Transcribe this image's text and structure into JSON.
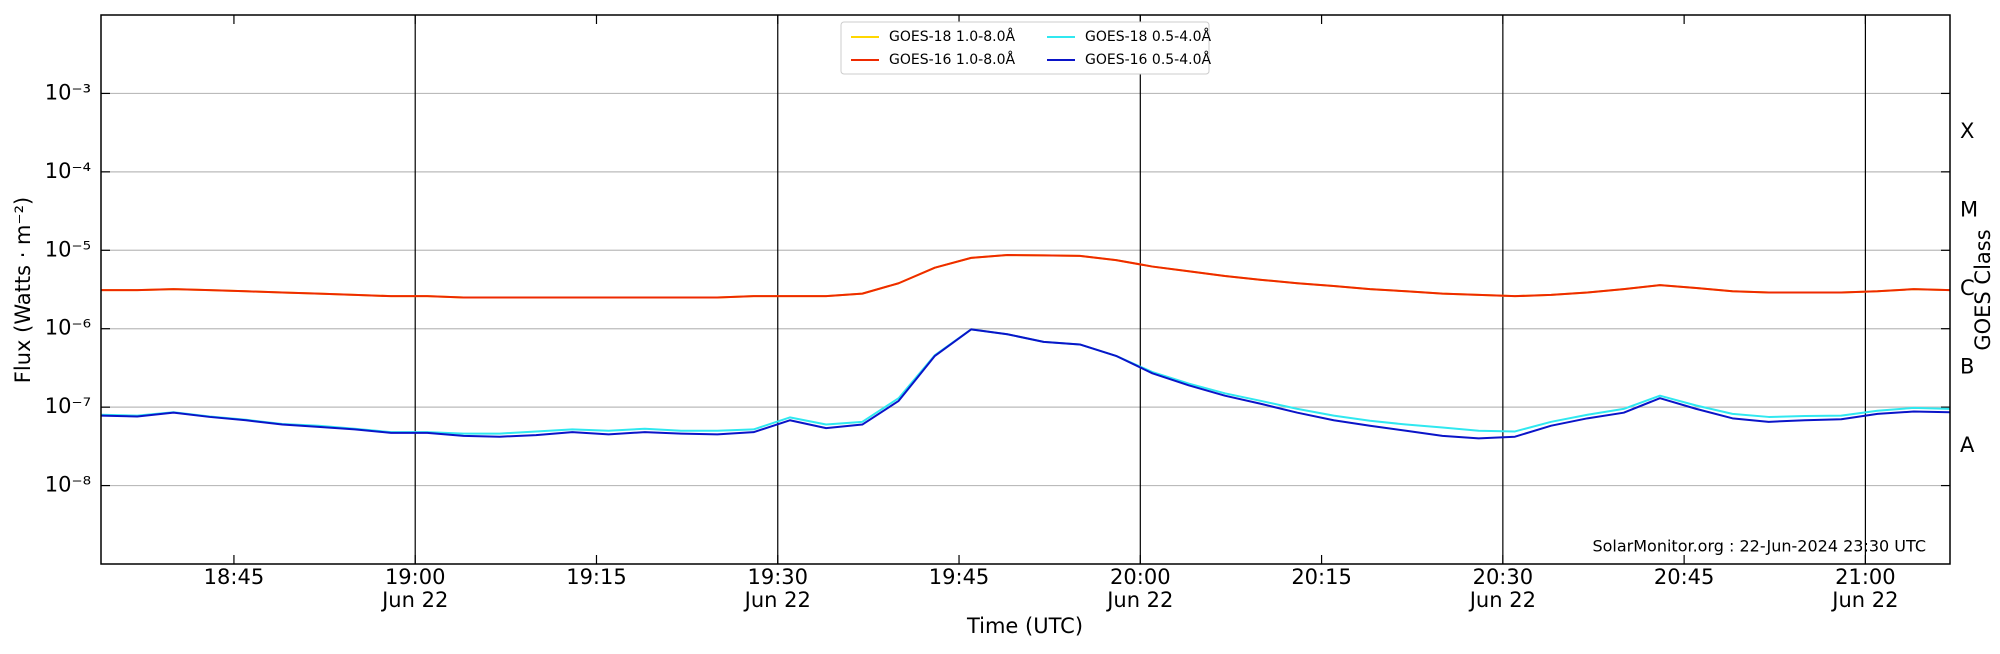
{
  "chart_data": {
    "type": "line",
    "xlabel": "Time (UTC)",
    "ylabel": "Flux (Watts · m⁻²)",
    "y2label": "GOES Class",
    "annotation": "SolarMonitor.org : 22-Jun-2024 23:30 UTC",
    "log_y": true,
    "grid": true,
    "legend": "upper center",
    "legend_columns": 2,
    "xlim": [
      "18:34",
      "21:07"
    ],
    "xticks": [
      "18:45",
      {
        "value": "19:00",
        "label": [
          "19:00",
          "Jun 22"
        ]
      },
      "19:15",
      {
        "value": "19:30",
        "label": [
          "19:30",
          "Jun 22"
        ]
      },
      "19:45",
      {
        "value": "20:00",
        "label": [
          "20:00",
          "Jun 22"
        ]
      },
      "20:15",
      {
        "value": "20:30",
        "label": [
          "20:30",
          "Jun 22"
        ]
      },
      "20:45",
      {
        "value": "21:00",
        "label": [
          "21:00",
          "Jun 22"
        ]
      }
    ],
    "vlines": [
      "19:00",
      "19:30",
      "20:00",
      "20:30",
      "21:00"
    ],
    "ylim": [
      1e-09,
      0.01
    ],
    "yticks": [
      {
        "value": 0.001,
        "label": "10⁻³"
      },
      {
        "value": 0.0001,
        "label": "10⁻⁴"
      },
      {
        "value": 1e-05,
        "label": "10⁻⁵"
      },
      {
        "value": 1e-06,
        "label": "10⁻⁶"
      },
      {
        "value": 1e-07,
        "label": "10⁻⁷"
      },
      {
        "value": 1e-08,
        "label": "10⁻⁸"
      }
    ],
    "y2lim": [
      1e-09,
      0.01
    ],
    "y2ticks": [
      {
        "value": 0.00032,
        "label": "X"
      },
      {
        "value": 3.2e-05,
        "label": "M"
      },
      {
        "value": 3.2e-06,
        "label": "C"
      },
      {
        "value": 3.2e-07,
        "label": "B"
      },
      {
        "value": 3.2e-08,
        "label": "A"
      }
    ],
    "x": [
      "18:34",
      "18:37",
      "18:40",
      "18:43",
      "18:46",
      "18:49",
      "18:52",
      "18:55",
      "18:58",
      "19:01",
      "19:04",
      "19:07",
      "19:10",
      "19:13",
      "19:16",
      "19:19",
      "19:22",
      "19:25",
      "19:28",
      "19:31",
      "19:34",
      "19:37",
      "19:40",
      "19:43",
      "19:46",
      "19:49",
      "19:52",
      "19:55",
      "19:58",
      "20:01",
      "20:04",
      "20:07",
      "20:10",
      "20:13",
      "20:16",
      "20:19",
      "20:22",
      "20:25",
      "20:28",
      "20:31",
      "20:34",
      "20:37",
      "20:40",
      "20:43",
      "20:46",
      "20:49",
      "20:52",
      "20:55",
      "20:58",
      "21:01",
      "21:04",
      "21:07"
    ],
    "series": [
      {
        "name": "GOES-18 1.0-8.0Å",
        "color": "#ffd700",
        "values": [
          3.1e-06,
          3.1e-06,
          3.2e-06,
          3.1e-06,
          3e-06,
          2.9e-06,
          2.8e-06,
          2.7e-06,
          2.6e-06,
          2.6e-06,
          2.5e-06,
          2.5e-06,
          2.5e-06,
          2.5e-06,
          2.5e-06,
          2.5e-06,
          2.5e-06,
          2.5e-06,
          2.6e-06,
          2.6e-06,
          2.6e-06,
          2.8e-06,
          3.8e-06,
          6e-06,
          8e-06,
          8.7e-06,
          8.6e-06,
          8.5e-06,
          7.5e-06,
          6.2e-06,
          5.4e-06,
          4.7e-06,
          4.2e-06,
          3.8e-06,
          3.5e-06,
          3.2e-06,
          3e-06,
          2.8e-06,
          2.7e-06,
          2.6e-06,
          2.7e-06,
          2.9e-06,
          3.2e-06,
          3.6e-06,
          3.3e-06,
          3e-06,
          2.9e-06,
          2.9e-06,
          2.9e-06,
          3e-06,
          3.2e-06,
          3.1e-06
        ]
      },
      {
        "name": "GOES-16 1.0-8.0Å",
        "color": "#ee2a00",
        "values": [
          3.1e-06,
          3.1e-06,
          3.2e-06,
          3.1e-06,
          3e-06,
          2.9e-06,
          2.8e-06,
          2.7e-06,
          2.6e-06,
          2.6e-06,
          2.5e-06,
          2.5e-06,
          2.5e-06,
          2.5e-06,
          2.5e-06,
          2.5e-06,
          2.5e-06,
          2.5e-06,
          2.6e-06,
          2.6e-06,
          2.6e-06,
          2.8e-06,
          3.8e-06,
          6e-06,
          8e-06,
          8.7e-06,
          8.6e-06,
          8.5e-06,
          7.5e-06,
          6.2e-06,
          5.4e-06,
          4.7e-06,
          4.2e-06,
          3.8e-06,
          3.5e-06,
          3.2e-06,
          3e-06,
          2.8e-06,
          2.7e-06,
          2.6e-06,
          2.7e-06,
          2.9e-06,
          3.2e-06,
          3.6e-06,
          3.3e-06,
          3e-06,
          2.9e-06,
          2.9e-06,
          2.9e-06,
          3e-06,
          3.2e-06,
          3.1e-06
        ]
      },
      {
        "name": "GOES-18 0.5-4.0Å",
        "color": "#30e8f0",
        "values": [
          8e-08,
          7.8e-08,
          8.6e-08,
          7.6e-08,
          6.9e-08,
          6.1e-08,
          5.8e-08,
          5.3e-08,
          4.8e-08,
          4.8e-08,
          4.6e-08,
          4.6e-08,
          4.9e-08,
          5.2e-08,
          5e-08,
          5.3e-08,
          5e-08,
          5e-08,
          5.2e-08,
          7.4e-08,
          6e-08,
          6.5e-08,
          1.3e-07,
          4.6e-07,
          9.8e-07,
          8.5e-07,
          6.8e-07,
          6.3e-07,
          4.5e-07,
          2.8e-07,
          2e-07,
          1.5e-07,
          1.2e-07,
          9.5e-08,
          7.8e-08,
          6.7e-08,
          6e-08,
          5.5e-08,
          5e-08,
          4.9e-08,
          6.5e-08,
          8e-08,
          9.5e-08,
          1.4e-07,
          1.05e-07,
          8.2e-08,
          7.5e-08,
          7.7e-08,
          7.8e-08,
          9e-08,
          9.8e-08,
          9.5e-08
        ]
      },
      {
        "name": "GOES-16 0.5-4.0Å",
        "color": "#0a14c8",
        "values": [
          7.8e-08,
          7.6e-08,
          8.5e-08,
          7.5e-08,
          6.8e-08,
          6e-08,
          5.6e-08,
          5.2e-08,
          4.7e-08,
          4.7e-08,
          4.3e-08,
          4.2e-08,
          4.4e-08,
          4.8e-08,
          4.5e-08,
          4.8e-08,
          4.6e-08,
          4.5e-08,
          4.8e-08,
          6.8e-08,
          5.4e-08,
          6e-08,
          1.2e-07,
          4.5e-07,
          9.8e-07,
          8.5e-07,
          6.8e-07,
          6.3e-07,
          4.5e-07,
          2.7e-07,
          1.9e-07,
          1.4e-07,
          1.1e-07,
          8.5e-08,
          6.8e-08,
          5.8e-08,
          5e-08,
          4.3e-08,
          4e-08,
          4.2e-08,
          5.8e-08,
          7.2e-08,
          8.5e-08,
          1.3e-07,
          9.5e-08,
          7.2e-08,
          6.5e-08,
          6.8e-08,
          7e-08,
          8.2e-08,
          8.8e-08,
          8.6e-08
        ]
      }
    ]
  }
}
